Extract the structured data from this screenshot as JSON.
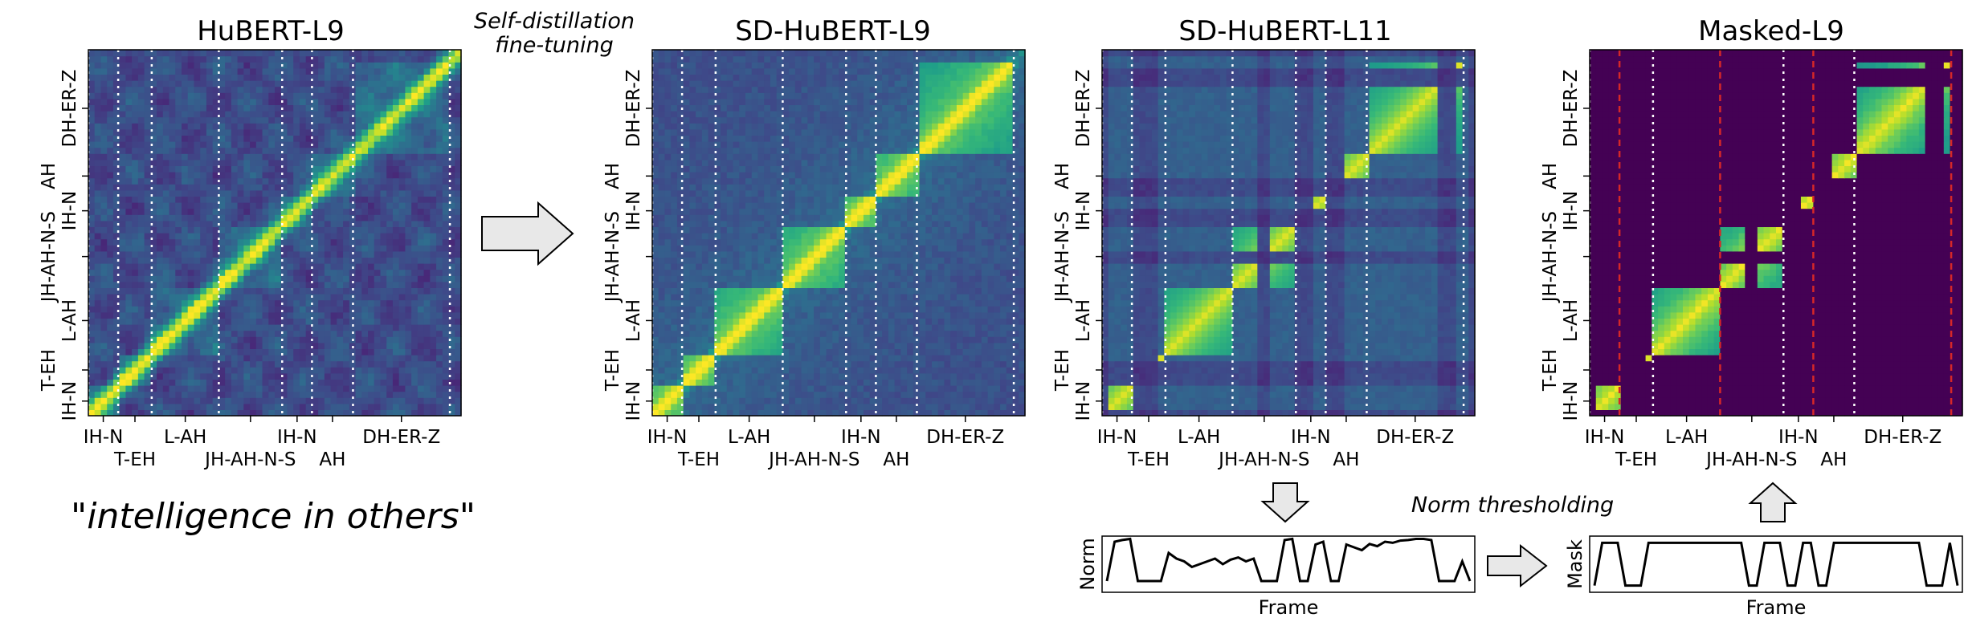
{
  "colors": {
    "dark": "#440154",
    "mid": "#2a788e",
    "teal": "#22a884",
    "bright": "#fde725",
    "bg_heat": "#3b528b",
    "red_dash": "#d62728"
  },
  "arrow_label": [
    "Self-distillation",
    "fine-tuning"
  ],
  "caption": {
    "pre": "\"",
    "italic": "intelligence in others",
    "post": "\""
  },
  "norm_thresholding_label": "Norm thresholding",
  "phoneme_labels": {
    "x_row1": [
      "IH-N",
      "L-AH",
      "IH-N",
      "DH-ER-Z"
    ],
    "x_row2": [
      "T-EH",
      "JH-AH-N-S",
      "AH"
    ],
    "y": [
      "IH-N",
      "T-EH",
      "L-AH",
      "JH-AH-N-S",
      "IH-N",
      "AH",
      "DH-ER-Z"
    ]
  },
  "panels": [
    {
      "id": "hubert-l9",
      "title": "HuBERT-L9",
      "style": "diag"
    },
    {
      "id": "sd-hubert-l9",
      "title": "SD-HuBERT-L9",
      "style": "blocky"
    },
    {
      "id": "sd-hubert-l11",
      "title": "SD-HuBERT-L11",
      "style": "sparse"
    },
    {
      "id": "masked-l9",
      "title": "Masked-L9",
      "style": "masked"
    }
  ],
  "segments": [
    {
      "label": "IH-N",
      "start": 0.0,
      "end": 0.08
    },
    {
      "label": "T-EH",
      "start": 0.08,
      "end": 0.17
    },
    {
      "label": "L-AH",
      "start": 0.17,
      "end": 0.35
    },
    {
      "label": "JH-AH-N-S",
      "start": 0.35,
      "end": 0.52
    },
    {
      "label": "IH-N",
      "start": 0.52,
      "end": 0.6
    },
    {
      "label": "AH",
      "start": 0.6,
      "end": 0.71
    },
    {
      "label": "DH-ER-Z",
      "start": 0.71,
      "end": 0.97
    }
  ],
  "norm_plot": {
    "ylabel": "Norm",
    "xlabel": "Frame",
    "values": [
      0.2,
      0.9,
      0.93,
      0.95,
      0.2,
      0.2,
      0.2,
      0.2,
      0.7,
      0.6,
      0.55,
      0.45,
      0.5,
      0.55,
      0.6,
      0.5,
      0.58,
      0.62,
      0.55,
      0.6,
      0.2,
      0.2,
      0.2,
      0.93,
      0.95,
      0.2,
      0.2,
      0.85,
      0.9,
      0.2,
      0.2,
      0.85,
      0.8,
      0.75,
      0.86,
      0.82,
      0.9,
      0.88,
      0.92,
      0.93,
      0.95,
      0.95,
      0.93,
      0.2,
      0.2,
      0.2,
      0.55,
      0.2
    ]
  },
  "mask_plot": {
    "ylabel": "Mask",
    "xlabel": "Frame",
    "values": [
      0,
      1,
      1,
      1,
      0,
      0,
      0,
      1,
      1,
      1,
      1,
      1,
      1,
      1,
      1,
      1,
      1,
      1,
      1,
      1,
      0,
      0,
      1,
      1,
      1,
      0,
      0,
      1,
      1,
      0,
      0,
      1,
      1,
      1,
      1,
      1,
      1,
      1,
      1,
      1,
      1,
      1,
      1,
      0,
      0,
      0,
      1,
      0
    ]
  }
}
